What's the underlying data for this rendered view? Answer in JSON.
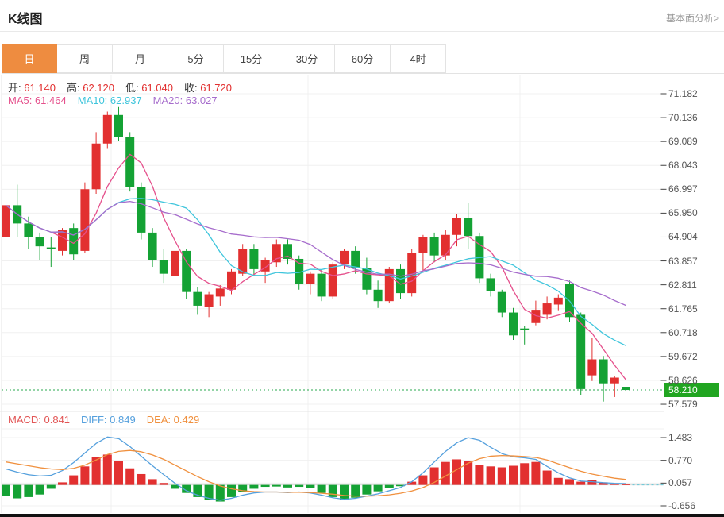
{
  "header": {
    "title": "K线图",
    "link": "基本面分析>"
  },
  "tabs": {
    "items": [
      {
        "name": "tab-day",
        "label": "日",
        "active": true
      },
      {
        "name": "tab-week",
        "label": "周",
        "active": false
      },
      {
        "name": "tab-month",
        "label": "月",
        "active": false
      },
      {
        "name": "tab-5min",
        "label": "5分",
        "active": false
      },
      {
        "name": "tab-15min",
        "label": "15分",
        "active": false
      },
      {
        "name": "tab-30min",
        "label": "30分",
        "active": false
      },
      {
        "name": "tab-60min",
        "label": "60分",
        "active": false
      },
      {
        "name": "tab-4hour",
        "label": "4时",
        "active": false
      }
    ]
  },
  "legend": {
    "ohlc": [
      {
        "label": "开:",
        "value": "61.140"
      },
      {
        "label": "高:",
        "value": "62.120"
      },
      {
        "label": "低:",
        "value": "61.040"
      },
      {
        "label": "收:",
        "value": "61.720"
      }
    ],
    "ma": [
      {
        "label": "MA5:",
        "value": "61.464",
        "color": "#e5508c"
      },
      {
        "label": "MA10:",
        "value": "62.937",
        "color": "#3ec5dc"
      },
      {
        "label": "MA20:",
        "value": "63.027",
        "color": "#a66ccc"
      }
    ],
    "macd": [
      {
        "label": "MACD:",
        "value": "0.841",
        "color": "#e25555"
      },
      {
        "label": "DIFF:",
        "value": "0.849",
        "color": "#55a0dd"
      },
      {
        "label": "DEA:",
        "value": "0.429",
        "color": "#f0903e"
      }
    ]
  },
  "price_axis": {
    "ticks": [
      "71.182",
      "70.136",
      "69.089",
      "68.043",
      "66.997",
      "65.950",
      "64.904",
      "63.857",
      "62.811",
      "61.765",
      "60.718",
      "59.672",
      "58.626",
      "57.579"
    ],
    "current_price": "58.210"
  },
  "macd_axis": {
    "ticks": [
      "1.483",
      "0.770",
      "0.057",
      "-0.656"
    ]
  },
  "colors": {
    "up": "#e23030",
    "down": "#14a234",
    "ma5": "#e5508c",
    "ma10": "#3ec5dc",
    "ma20": "#a66ccc",
    "diff": "#55a0dd",
    "dea": "#f0903e",
    "active_tab": "#ee8c40",
    "badge_bg": "#21a521",
    "price_line": "#2aa84f",
    "grid": "#f0f0f0",
    "grid_strong": "#e5e5e5",
    "axis_line": "#444444",
    "ohlc_value": "#e23030",
    "ohlc_label": "#333333",
    "zero_dash": "#66c8d8"
  },
  "chart_data": [
    {
      "type": "candlestick",
      "title": "K线图 (日K)",
      "ylabel": "price",
      "ylim": [
        57.3,
        71.5
      ],
      "y_ticks": [
        71.182,
        70.136,
        69.089,
        68.043,
        66.997,
        65.95,
        64.904,
        63.857,
        62.811,
        61.765,
        60.718,
        59.672,
        58.626,
        57.579
      ],
      "current_price": 58.21,
      "overlays": [
        "MA5",
        "MA10",
        "MA20"
      ],
      "candles_format": [
        "open",
        "high",
        "low",
        "close"
      ],
      "candles": [
        [
          64.9,
          66.5,
          64.7,
          66.3
        ],
        [
          66.3,
          67.2,
          64.9,
          65.5
        ],
        [
          65.5,
          65.8,
          64.4,
          64.9
        ],
        [
          64.9,
          65.1,
          63.9,
          64.5
        ],
        [
          64.45,
          64.9,
          63.6,
          64.4
        ],
        [
          64.3,
          65.3,
          64.1,
          65.2
        ],
        [
          65.3,
          65.5,
          63.9,
          64.15
        ],
        [
          64.3,
          67.3,
          64.2,
          67.0
        ],
        [
          67.0,
          69.5,
          66.8,
          69.0
        ],
        [
          69.0,
          70.4,
          68.8,
          70.25
        ],
        [
          70.25,
          70.6,
          69.1,
          69.3
        ],
        [
          69.3,
          69.5,
          66.9,
          67.1
        ],
        [
          67.1,
          67.3,
          64.8,
          65.1
        ],
        [
          65.1,
          65.3,
          63.6,
          63.9
        ],
        [
          63.9,
          64.4,
          62.9,
          63.3
        ],
        [
          63.2,
          64.5,
          63.0,
          64.3
        ],
        [
          64.3,
          64.4,
          62.2,
          62.5
        ],
        [
          62.5,
          62.7,
          61.5,
          61.9
        ],
        [
          61.85,
          62.5,
          61.4,
          62.4
        ],
        [
          62.3,
          62.8,
          61.9,
          62.65
        ],
        [
          62.6,
          63.5,
          62.4,
          63.4
        ],
        [
          63.3,
          64.6,
          63.2,
          64.4
        ],
        [
          64.4,
          64.6,
          63.2,
          63.5
        ],
        [
          63.4,
          64.0,
          62.9,
          63.9
        ],
        [
          63.8,
          64.8,
          63.6,
          64.6
        ],
        [
          64.6,
          64.8,
          63.7,
          63.95
        ],
        [
          63.95,
          64.1,
          62.6,
          62.85
        ],
        [
          62.85,
          63.4,
          62.4,
          63.3
        ],
        [
          63.3,
          63.5,
          62.1,
          62.3
        ],
        [
          62.3,
          63.8,
          62.2,
          63.7
        ],
        [
          63.7,
          64.4,
          63.5,
          64.3
        ],
        [
          64.3,
          64.5,
          63.3,
          63.55
        ],
        [
          63.55,
          64.0,
          62.4,
          62.6
        ],
        [
          62.6,
          63.0,
          61.8,
          62.1
        ],
        [
          62.1,
          63.6,
          62.0,
          63.5
        ],
        [
          63.5,
          63.7,
          62.2,
          62.45
        ],
        [
          62.45,
          64.4,
          62.3,
          64.2
        ],
        [
          64.2,
          65.0,
          63.4,
          64.9
        ],
        [
          64.9,
          65.1,
          63.8,
          64.1
        ],
        [
          64.1,
          65.2,
          63.9,
          65.0
        ],
        [
          65.0,
          65.9,
          64.5,
          65.75
        ],
        [
          65.75,
          66.4,
          64.4,
          64.95
        ],
        [
          64.95,
          65.1,
          62.9,
          63.1
        ],
        [
          63.1,
          63.3,
          62.3,
          62.55
        ],
        [
          62.5,
          62.6,
          61.4,
          61.6
        ],
        [
          61.6,
          61.8,
          60.4,
          60.6
        ],
        [
          60.9,
          61.0,
          60.2,
          60.85
        ],
        [
          61.14,
          62.12,
          61.04,
          61.72
        ],
        [
          61.5,
          62.3,
          61.3,
          62.0
        ],
        [
          61.95,
          62.4,
          61.7,
          62.25
        ],
        [
          62.85,
          63.0,
          61.2,
          61.4
        ],
        [
          61.5,
          61.6,
          58.0,
          58.25
        ],
        [
          58.85,
          60.5,
          58.6,
          59.55
        ],
        [
          59.55,
          59.7,
          57.7,
          58.5
        ],
        [
          58.5,
          58.8,
          57.9,
          58.75
        ],
        [
          58.35,
          58.45,
          58.0,
          58.21
        ]
      ]
    },
    {
      "type": "bar",
      "name": "MACD",
      "y_ticks": [
        1.483,
        0.77,
        0.057,
        -0.656
      ],
      "histogram": [
        -0.35,
        -0.42,
        -0.38,
        -0.3,
        -0.12,
        0.08,
        0.3,
        0.58,
        0.88,
        0.95,
        0.75,
        0.52,
        0.34,
        0.18,
        0.06,
        -0.12,
        -0.25,
        -0.38,
        -0.48,
        -0.52,
        -0.38,
        -0.22,
        -0.12,
        -0.06,
        -0.05,
        -0.08,
        -0.06,
        -0.1,
        -0.25,
        -0.38,
        -0.46,
        -0.4,
        -0.3,
        -0.2,
        -0.1,
        -0.04,
        0.1,
        0.3,
        0.55,
        0.72,
        0.8,
        0.75,
        0.62,
        0.58,
        0.55,
        0.6,
        0.68,
        0.72,
        0.45,
        0.22,
        0.18,
        0.1,
        0.15,
        0.08,
        0.05,
        0.02
      ],
      "diff": [
        0.5,
        0.4,
        0.32,
        0.28,
        0.3,
        0.45,
        0.7,
        1.0,
        1.3,
        1.5,
        1.45,
        1.2,
        0.9,
        0.6,
        0.32,
        0.05,
        -0.18,
        -0.32,
        -0.42,
        -0.48,
        -0.42,
        -0.32,
        -0.25,
        -0.22,
        -0.22,
        -0.24,
        -0.22,
        -0.25,
        -0.32,
        -0.4,
        -0.45,
        -0.42,
        -0.35,
        -0.28,
        -0.18,
        -0.08,
        0.1,
        0.38,
        0.72,
        1.05,
        1.32,
        1.48,
        1.4,
        1.18,
        0.98,
        0.88,
        0.85,
        0.8,
        0.58,
        0.38,
        0.22,
        0.12,
        0.1,
        0.07,
        0.05,
        0.04
      ],
      "dea": [
        0.72,
        0.66,
        0.6,
        0.54,
        0.5,
        0.48,
        0.52,
        0.62,
        0.78,
        0.95,
        1.05,
        1.08,
        1.04,
        0.94,
        0.8,
        0.62,
        0.44,
        0.26,
        0.1,
        -0.03,
        -0.12,
        -0.18,
        -0.21,
        -0.22,
        -0.22,
        -0.23,
        -0.23,
        -0.24,
        -0.26,
        -0.29,
        -0.33,
        -0.35,
        -0.35,
        -0.34,
        -0.31,
        -0.26,
        -0.19,
        -0.08,
        0.08,
        0.28,
        0.48,
        0.68,
        0.82,
        0.9,
        0.92,
        0.91,
        0.89,
        0.86,
        0.78,
        0.66,
        0.54,
        0.43,
        0.34,
        0.27,
        0.21,
        0.17
      ]
    }
  ]
}
